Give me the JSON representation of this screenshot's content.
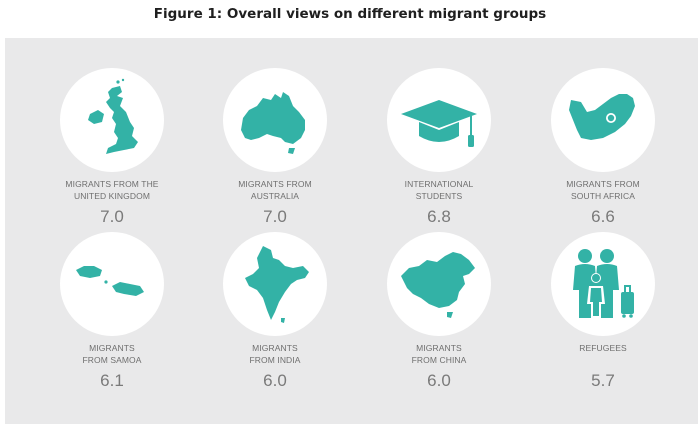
{
  "title": "Figure 1: Overall views on different migrant groups",
  "colors": {
    "accent": "#33b2a6",
    "panel": "#e9e9ea",
    "text": "#6f6f6f"
  },
  "chart_data": {
    "type": "bar",
    "title": "Figure 1: Overall views on different migrant groups",
    "categories": [
      "MIGRANTS FROM THE UNITED KINGDOM",
      "MIGRANTS FROM AUSTRALIA",
      "INTERNATIONAL STUDENTS",
      "MIGRANTS FROM SOUTH AFRICA",
      "MIGRANTS FROM SAMOA",
      "MIGRANTS FROM INDIA",
      "MIGRANTS FROM CHINA",
      "REFUGEES"
    ],
    "values": [
      7.0,
      7.0,
      6.8,
      6.6,
      6.1,
      6.0,
      6.0,
      5.7
    ],
    "value_labels": [
      "7.0",
      "7.0",
      "6.8",
      "6.6",
      "6.1",
      "6.0",
      "6.0",
      "5.7"
    ]
  },
  "groups": [
    {
      "label_lines": [
        "MIGRANTS FROM THE",
        "UNITED KINGDOM"
      ],
      "score": "7.0",
      "icon": "united-kingdom-map-icon"
    },
    {
      "label_lines": [
        "MIGRANTS FROM",
        "AUSTRALIA"
      ],
      "score": "7.0",
      "icon": "australia-map-icon"
    },
    {
      "label_lines": [
        "INTERNATIONAL",
        "STUDENTS"
      ],
      "score": "6.8",
      "icon": "graduation-cap-icon"
    },
    {
      "label_lines": [
        "MIGRANTS FROM",
        "SOUTH AFRICA"
      ],
      "score": "6.6",
      "icon": "south-africa-map-icon"
    },
    {
      "label_lines": [
        "MIGRANTS",
        "FROM SAMOA"
      ],
      "score": "6.1",
      "icon": "samoa-map-icon"
    },
    {
      "label_lines": [
        "MIGRANTS",
        "FROM INDIA"
      ],
      "score": "6.0",
      "icon": "india-map-icon"
    },
    {
      "label_lines": [
        "MIGRANTS",
        "FROM CHINA"
      ],
      "score": "6.0",
      "icon": "china-map-icon"
    },
    {
      "label_lines": [
        "REFUGEES"
      ],
      "score": "5.7",
      "icon": "refugee-family-icon"
    }
  ]
}
